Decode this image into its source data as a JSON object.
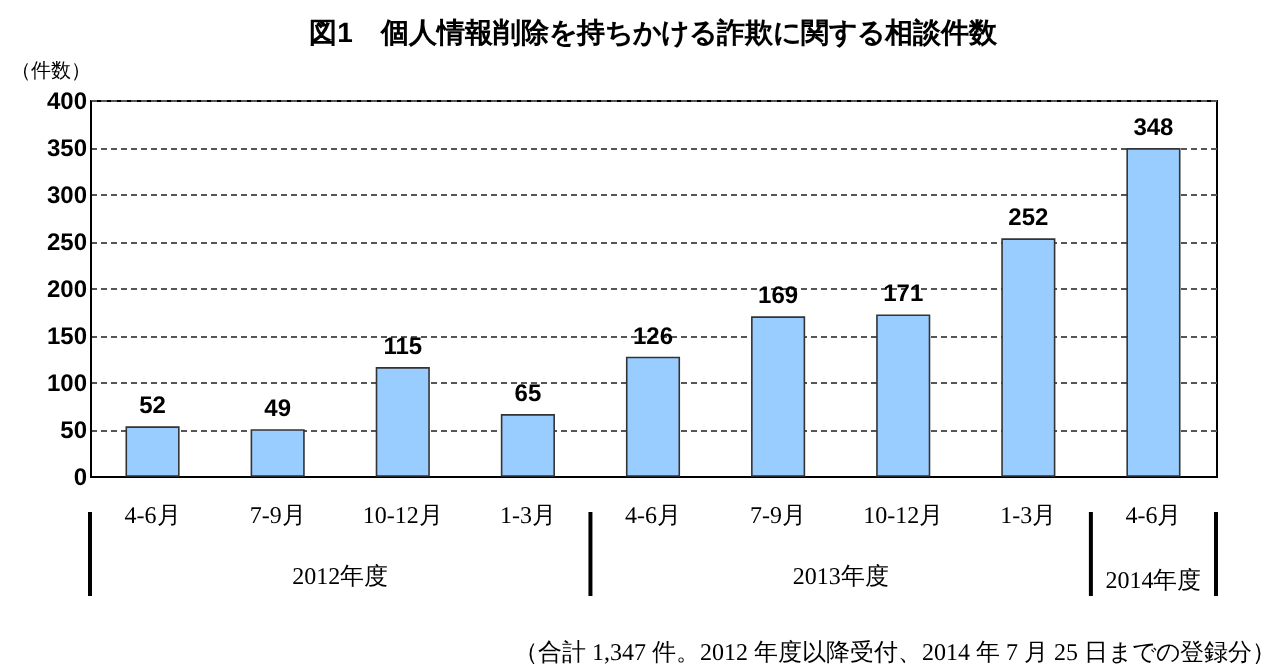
{
  "chart_data": {
    "type": "bar",
    "title": "図1　個人情報削除を持ちかける詐欺に関する相談件数",
    "ylabel": "（件数）",
    "categories": [
      "4-6月",
      "7-9月",
      "10-12月",
      "1-3月",
      "4-6月",
      "7-9月",
      "10-12月",
      "1-3月",
      "4-6月"
    ],
    "values": [
      52,
      49,
      115,
      65,
      126,
      169,
      171,
      252,
      348
    ],
    "color": "#99ccff",
    "ylim": [
      0,
      400
    ],
    "yticks": [
      0,
      50,
      100,
      150,
      200,
      250,
      300,
      350,
      400
    ],
    "grid": "y",
    "data_labels": true,
    "annotations": [
      "2012年度",
      "2013年度",
      "2014年度",
      "（合計 1,347 件。2012 年度以降受付、2014 年 7 月 25 日までの登録分）"
    ]
  }
}
